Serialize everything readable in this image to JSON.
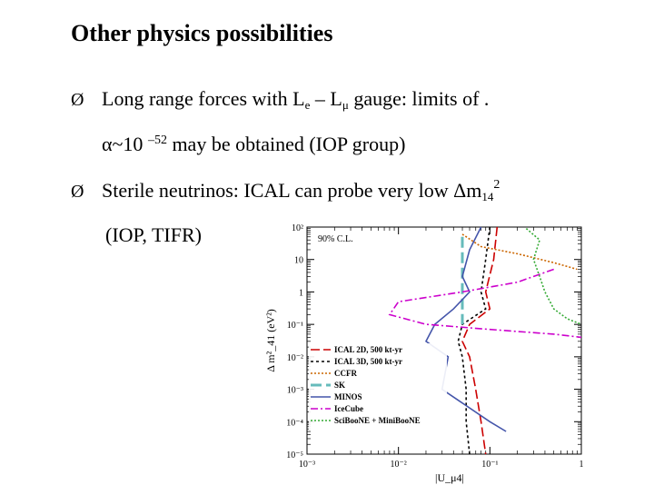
{
  "slide": {
    "title": "Other physics possibilities",
    "bullet1": {
      "marker": "Ø",
      "text_a": "Long range forces with L",
      "sub_e": "e",
      "text_b": " – L",
      "sub_mu": "μ",
      "text_c": " gauge: limits of  .",
      "line2_a": "α~10 ",
      "line2_exp": "–52",
      "line2_b": " may be obtained (IOP group)"
    },
    "bullet2": {
      "marker": "Ø",
      "text_a": "Sterile neutrinos: ICAL can probe very low Δm",
      "sub": "14",
      "sup": "2",
      "line2": "(IOP, TIFR)"
    }
  },
  "chart_data": {
    "type": "line",
    "title": "",
    "annotation": "90% C.L.",
    "xlabel": "|U_μ4|",
    "ylabel": "Δ m²_41 (eV²)",
    "xscale": "log",
    "yscale": "log",
    "xlim": [
      0.001,
      1
    ],
    "ylim": [
      1e-05,
      100
    ],
    "x_tick_labels": [
      "10⁻³",
      "10⁻²",
      "10⁻¹",
      "1"
    ],
    "y_tick_labels": [
      "10²",
      "10",
      "1",
      "10⁻¹",
      "10⁻²",
      "10⁻³",
      "10⁻⁴",
      "10⁻⁵"
    ],
    "legend_position": "bottom-left",
    "series": [
      {
        "name": "ICAL 2D, 500 kt-yr",
        "color": "#cc0000",
        "dash": "10,4",
        "points": [
          [
            0.12,
            100
          ],
          [
            0.11,
            10
          ],
          [
            0.09,
            1
          ],
          [
            0.1,
            0.3
          ],
          [
            0.06,
            0.1
          ],
          [
            0.05,
            0.03
          ],
          [
            0.06,
            0.01
          ],
          [
            0.07,
            0.001
          ],
          [
            0.08,
            0.0001
          ],
          [
            0.09,
            1e-05
          ]
        ]
      },
      {
        "name": "ICAL 3D, 500 kt-yr",
        "color": "#000000",
        "dash": "3,3",
        "points": [
          [
            0.1,
            100
          ],
          [
            0.09,
            10
          ],
          [
            0.08,
            1
          ],
          [
            0.09,
            0.3
          ],
          [
            0.05,
            0.1
          ],
          [
            0.045,
            0.03
          ],
          [
            0.05,
            0.01
          ],
          [
            0.055,
            0.001
          ],
          [
            0.055,
            0.0001
          ],
          [
            0.06,
            1e-05
          ]
        ]
      },
      {
        "name": "CCFR",
        "color": "#cc6600",
        "dash": "2,2",
        "points": [
          [
            0.05,
            60
          ],
          [
            0.08,
            25
          ],
          [
            0.2,
            15
          ],
          [
            0.5,
            8
          ],
          [
            0.9,
            5
          ]
        ]
      },
      {
        "name": "SK",
        "color": "#66bbbb",
        "dash": "12,5",
        "points": [
          [
            0.05,
            50
          ],
          [
            0.05,
            0.1
          ]
        ]
      },
      {
        "name": "MINOS",
        "color": "#4455aa",
        "dash": "",
        "points": [
          [
            0.08,
            100
          ],
          [
            0.06,
            20
          ],
          [
            0.05,
            3
          ],
          [
            0.06,
            1
          ],
          [
            0.04,
            0.3
          ],
          [
            0.025,
            0.1
          ],
          [
            0.02,
            0.03
          ],
          [
            0.035,
            0.01
          ],
          [
            0.03,
            0.001
          ],
          [
            0.1,
            0.0001
          ],
          [
            0.15,
            5e-05
          ]
        ]
      },
      {
        "name": "IceCube",
        "color": "#cc00cc",
        "dash": "8,3,2,3",
        "points": [
          [
            0.5,
            5
          ],
          [
            0.2,
            2
          ],
          [
            0.05,
            1
          ],
          [
            0.01,
            0.5
          ],
          [
            0.008,
            0.2
          ],
          [
            0.02,
            0.1
          ],
          [
            0.1,
            0.07
          ],
          [
            0.5,
            0.05
          ],
          [
            1,
            0.04
          ]
        ]
      },
      {
        "name": "SciBooNE + MiniBooNE",
        "color": "#33aa33",
        "dash": "2,2",
        "points": [
          [
            0.25,
            90
          ],
          [
            0.35,
            40
          ],
          [
            0.3,
            10
          ],
          [
            0.35,
            3
          ],
          [
            0.4,
            1
          ],
          [
            0.5,
            0.3
          ],
          [
            0.7,
            0.15
          ],
          [
            1,
            0.1
          ]
        ]
      }
    ]
  }
}
